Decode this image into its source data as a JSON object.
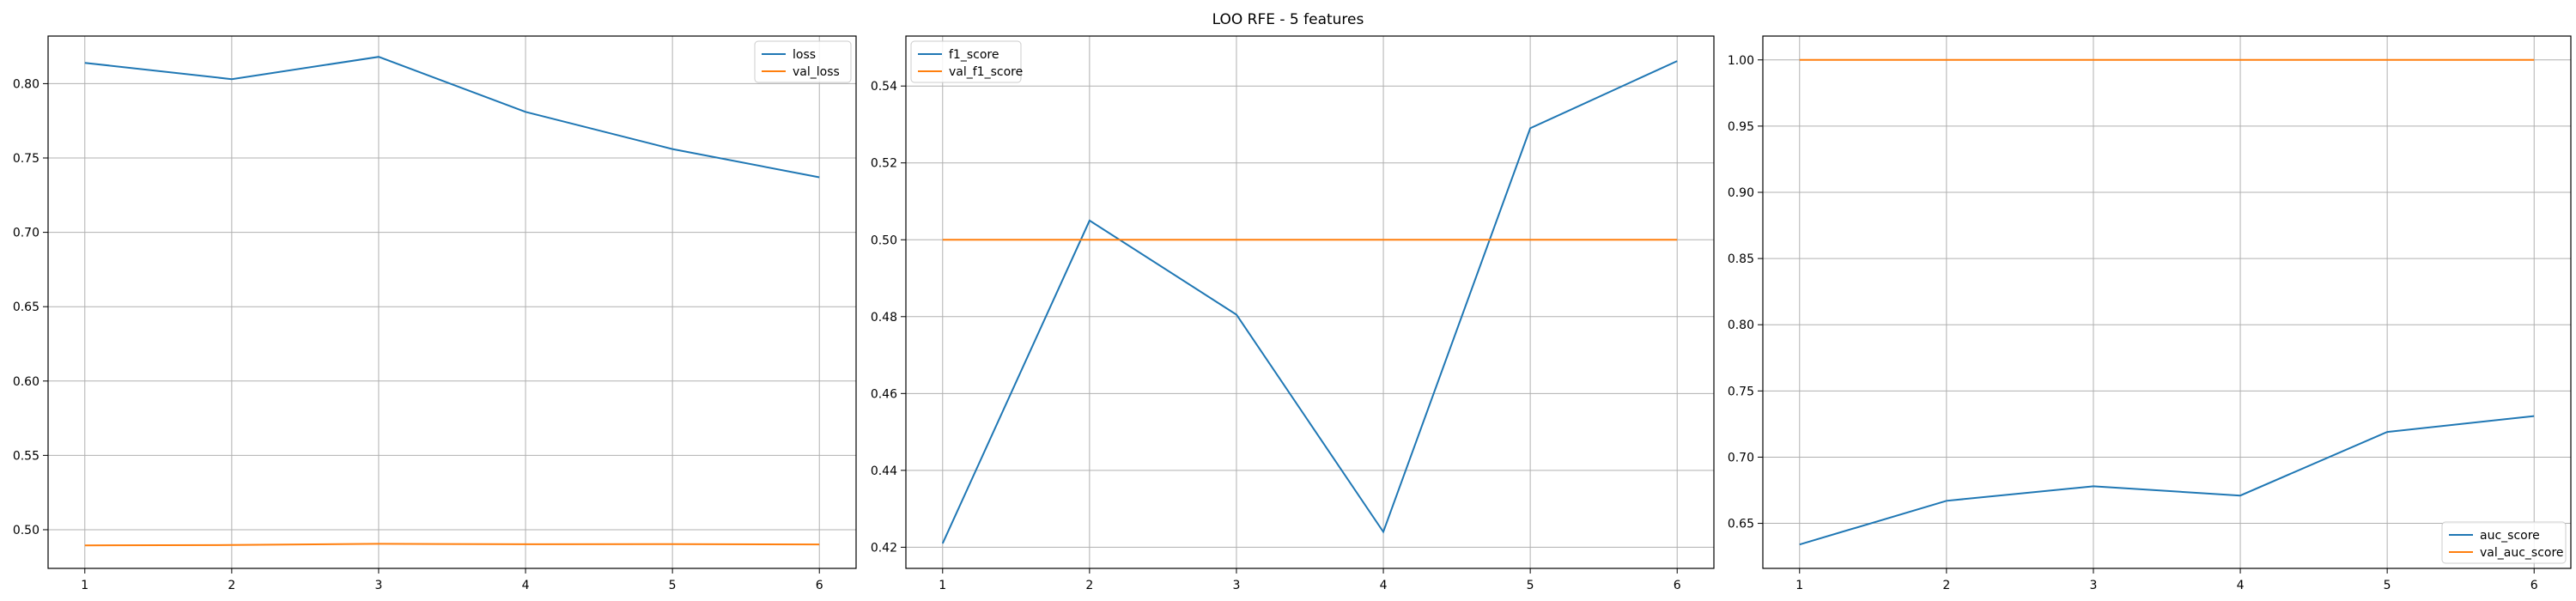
{
  "figure": {
    "title": "LOO RFE - 5 features"
  },
  "colors": {
    "train": "#1f77b4",
    "val": "#ff7f0e",
    "grid": "#b0b0b0",
    "axis": "#000000"
  },
  "chart_data": [
    {
      "type": "line",
      "title": "",
      "xlabel": "",
      "ylabel": "",
      "x": [
        1,
        2,
        3,
        4,
        5,
        6
      ],
      "xlim": [
        0.75,
        6.25
      ],
      "ylim": [
        0.474,
        0.832
      ],
      "xticks": [
        "1",
        "2",
        "3",
        "4",
        "5",
        "6"
      ],
      "yticks": [
        "0.50",
        "0.55",
        "0.60",
        "0.65",
        "0.70",
        "0.75",
        "0.80"
      ],
      "grid": true,
      "legend_position": "top-right",
      "series": [
        {
          "name": "loss",
          "color_key": "train",
          "values": [
            0.814,
            0.803,
            0.818,
            0.781,
            0.756,
            0.737
          ]
        },
        {
          "name": "val_loss",
          "color_key": "val",
          "values": [
            0.4895,
            0.4897,
            0.4905,
            0.4902,
            0.4903,
            0.4901
          ]
        }
      ]
    },
    {
      "type": "line",
      "title": "",
      "xlabel": "",
      "ylabel": "",
      "x": [
        1,
        2,
        3,
        4,
        5,
        6
      ],
      "xlim": [
        0.75,
        6.25
      ],
      "ylim": [
        0.4145,
        0.553
      ],
      "xticks": [
        "1",
        "2",
        "3",
        "4",
        "5",
        "6"
      ],
      "yticks": [
        "0.42",
        "0.44",
        "0.46",
        "0.48",
        "0.50",
        "0.52",
        "0.54"
      ],
      "grid": true,
      "legend_position": "top-left",
      "series": [
        {
          "name": "f1_score",
          "color_key": "train",
          "values": [
            0.421,
            0.505,
            0.4805,
            0.424,
            0.529,
            0.5465
          ]
        },
        {
          "name": "val_f1_score",
          "color_key": "val",
          "values": [
            0.5,
            0.5,
            0.5,
            0.5,
            0.5,
            0.5
          ]
        }
      ]
    },
    {
      "type": "line",
      "title": "",
      "xlabel": "",
      "ylabel": "",
      "x": [
        1,
        2,
        3,
        4,
        5,
        6
      ],
      "xlim": [
        0.75,
        6.25
      ],
      "ylim": [
        0.616,
        1.018
      ],
      "xticks": [
        "1",
        "2",
        "3",
        "4",
        "5",
        "6"
      ],
      "yticks": [
        "0.65",
        "0.70",
        "0.75",
        "0.80",
        "0.85",
        "0.90",
        "0.95",
        "1.00"
      ],
      "grid": true,
      "legend_position": "bottom-right",
      "series": [
        {
          "name": "auc_score",
          "color_key": "train",
          "values": [
            0.634,
            0.667,
            0.678,
            0.671,
            0.719,
            0.731
          ]
        },
        {
          "name": "val_auc_score",
          "color_key": "val",
          "values": [
            1.0,
            1.0,
            1.0,
            1.0,
            1.0,
            1.0
          ]
        }
      ]
    }
  ]
}
